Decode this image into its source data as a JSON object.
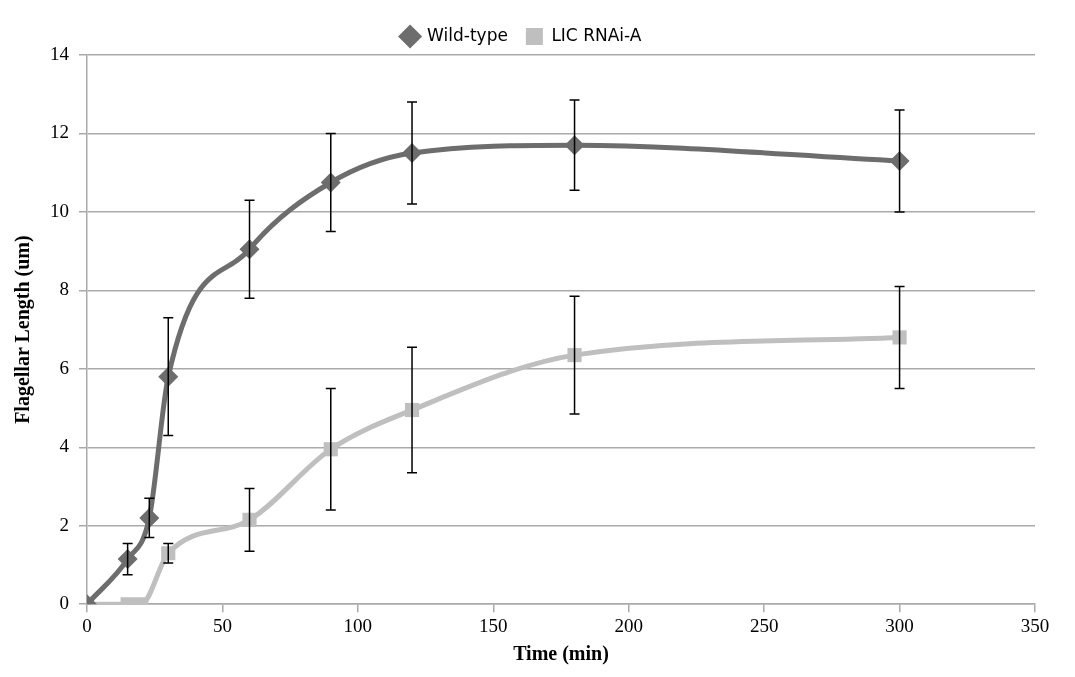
{
  "chart_data": {
    "type": "line",
    "xlabel": "Time (min)",
    "ylabel": "Flagellar Length (um)",
    "xlim": [
      0,
      350
    ],
    "xticks": [
      0,
      50,
      100,
      150,
      200,
      250,
      300,
      350
    ],
    "ylim": [
      0,
      14
    ],
    "yticks": [
      0,
      2,
      4,
      6,
      8,
      10,
      12,
      14
    ],
    "grid": "y",
    "legend": "top",
    "line_style": "solid",
    "series": [
      {
        "name": "Wild-type",
        "color": "#6d6d6d",
        "marker": "diamond",
        "x": [
          0,
          15,
          23,
          30,
          60,
          90,
          120,
          180,
          300
        ],
        "values": [
          0,
          1.15,
          2.2,
          5.8,
          9.05,
          10.75,
          11.5,
          11.7,
          11.3
        ],
        "errors": [
          null,
          0.4,
          0.5,
          1.5,
          1.25,
          1.25,
          1.3,
          1.15,
          1.3
        ]
      },
      {
        "name": "LIC RNAi-A",
        "color": "#bfbfbf",
        "marker": "square",
        "x": [
          0,
          15,
          20,
          30,
          60,
          90,
          120,
          180,
          300
        ],
        "values": [
          0,
          0,
          0,
          1.3,
          2.15,
          3.95,
          4.95,
          6.35,
          6.8
        ],
        "errors": [
          null,
          null,
          null,
          0.25,
          0.8,
          1.55,
          1.6,
          1.5,
          1.3
        ]
      }
    ]
  }
}
